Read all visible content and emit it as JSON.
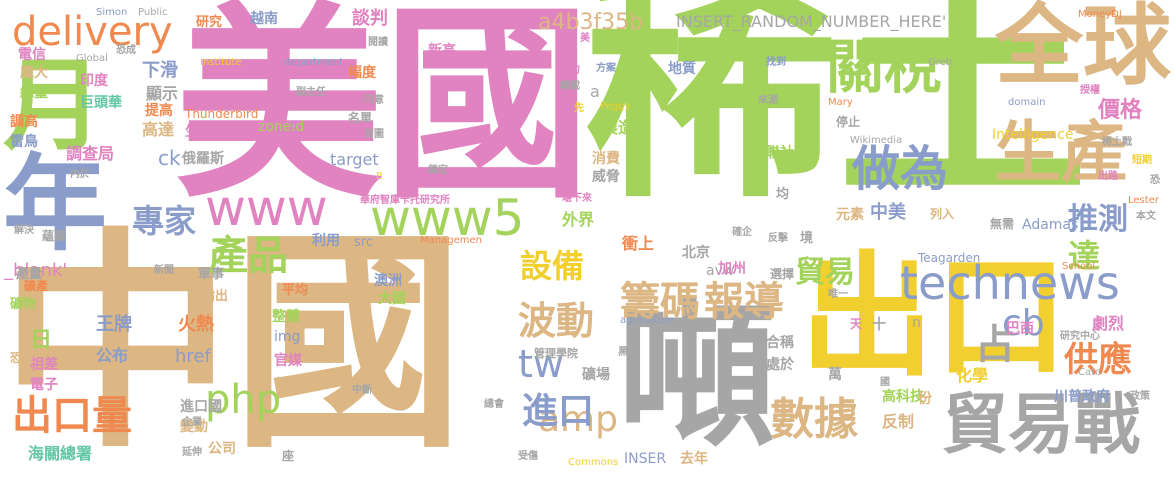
{
  "palette": {
    "green": "#a3d35a",
    "pink": "#e083c0",
    "tan": "#dcb683",
    "blue": "#8a9cc9",
    "gray": "#a6a6a6",
    "yellow": "#f0cf2e",
    "orange": "#f0894f",
    "teal": "#63c7a5"
  },
  "words": [
    {
      "text": "稀土"
    },
    {
      "text": "美國"
    },
    {
      "text": "中國"
    },
    {
      "text": "出口"
    },
    {
      "text": "噸"
    },
    {
      "text": "全球"
    },
    {
      "text": "關稅"
    },
    {
      "text": "生產"
    },
    {
      "text": "貿易戰"
    },
    {
      "text": "technews"
    },
    {
      "text": "www5"
    },
    {
      "text": "www"
    },
    {
      "text": "月"
    },
    {
      "text": "年"
    },
    {
      "text": "delivery"
    },
    {
      "text": "做為"
    },
    {
      "text": "籌碼"
    },
    {
      "text": "報導"
    },
    {
      "text": "數據"
    },
    {
      "text": "波動"
    },
    {
      "text": "產品"
    },
    {
      "text": "專家"
    },
    {
      "text": "設備"
    },
    {
      "text": "貿易"
    },
    {
      "text": "php"
    },
    {
      "text": "amp"
    },
    {
      "text": "tw"
    },
    {
      "text": "出口量"
    },
    {
      "text": "進口"
    },
    {
      "text": "cb"
    },
    {
      "text": "供應"
    },
    {
      "text": "占"
    },
    {
      "text": "達"
    },
    {
      "text": "推測"
    },
    {
      "text": "價格"
    },
    {
      "text": "a4b3f35b"
    },
    {
      "text": "INSERT_RANDOM_NUMBER_HERE'"
    },
    {
      "text": "談判"
    },
    {
      "text": "越南"
    },
    {
      "text": "研究"
    },
    {
      "text": "電信"
    },
    {
      "text": "魔大"
    },
    {
      "text": "總量"
    },
    {
      "text": "調高"
    },
    {
      "text": "雷鳥"
    },
    {
      "text": "印度"
    },
    {
      "text": "巨頭華"
    },
    {
      "text": "提高"
    },
    {
      "text": "高達"
    },
    {
      "text": "顯示"
    },
    {
      "text": "下滑"
    },
    {
      "text": "ck"
    },
    {
      "text": "俄羅斯"
    },
    {
      "text": "調查局"
    },
    {
      "text": "生產國"
    },
    {
      "text": "Thunderbird"
    },
    {
      "text": "zoneid"
    },
    {
      "text": "幅度"
    },
    {
      "text": "名單"
    },
    {
      "text": "target"
    },
    {
      "text": "新高"
    },
    {
      "text": "Intelligence"
    },
    {
      "text": "美聯社"
    },
    {
      "text": "製造"
    },
    {
      "text": "消費"
    },
    {
      "text": "威脅"
    },
    {
      "text": "地質"
    },
    {
      "text": "中美"
    },
    {
      "text": "元素"
    },
    {
      "text": "外界"
    },
    {
      "text": "軍事"
    },
    {
      "text": "指出"
    },
    {
      "text": "利用"
    },
    {
      "text": "src"
    },
    {
      "text": "衝上"
    },
    {
      "text": "北京"
    },
    {
      "text": "avw"
    },
    {
      "text": "加州"
    },
    {
      "text": "選擇"
    },
    {
      "text": "Adamas"
    },
    {
      "text": "無需"
    },
    {
      "text": "列入"
    },
    {
      "text": "Teagarden"
    },
    {
      "text": "_blank'"
    },
    {
      "text": "產量"
    },
    {
      "text": "礦產"
    },
    {
      "text": "礦物"
    },
    {
      "text": "平均"
    },
    {
      "text": "澳洲"
    },
    {
      "text": "大國"
    },
    {
      "text": "王牌"
    },
    {
      "text": "火熱"
    },
    {
      "text": "href"
    },
    {
      "text": "公布"
    },
    {
      "text": "日"
    },
    {
      "text": "整體"
    },
    {
      "text": "img"
    },
    {
      "text": "官媒"
    },
    {
      "text": "比率"
    },
    {
      "text": "相差"
    },
    {
      "text": "電子"
    },
    {
      "text": "恐慌"
    },
    {
      "text": "進口國"
    },
    {
      "text": "變動"
    },
    {
      "text": "公司"
    },
    {
      "text": "海關總署"
    },
    {
      "text": "管理學院"
    },
    {
      "text": "礦場"
    },
    {
      "text": "合稱"
    },
    {
      "text": "處於"
    },
    {
      "text": "萬"
    },
    {
      "text": "高科技"
    },
    {
      "text": "反制"
    },
    {
      "text": "INSER"
    },
    {
      "text": "去年"
    },
    {
      "text": "化學"
    },
    {
      "text": "份"
    },
    {
      "text": "n"
    },
    {
      "text": "川普政府"
    },
    {
      "text": "劇烈"
    },
    {
      "text": "巴西"
    },
    {
      "text": "a"
    },
    {
      "text": "Simon"
    },
    {
      "text": "Public"
    },
    {
      "text": "Global"
    },
    {
      "text": "department"
    },
    {
      "text": "Institute"
    },
    {
      "text": "MoneyDJ"
    },
    {
      "text": "Greb"
    },
    {
      "text": "副主任"
    },
    {
      "text": "方案"
    },
    {
      "text": "找到"
    },
    {
      "text": "細甸"
    },
    {
      "text": "轉載"
    },
    {
      "text": "Peggy"
    },
    {
      "text": "來源"
    },
    {
      "text": "停止"
    },
    {
      "text": "Mary"
    },
    {
      "text": "domain"
    },
    {
      "text": "授權"
    },
    {
      "text": "Wikimedia"
    },
    {
      "text": "稀土戰"
    },
    {
      "text": "短期"
    },
    {
      "text": "出路"
    },
    {
      "text": "Lester"
    },
    {
      "text": "本文"
    },
    {
      "text": "華府智庫卡托研究所"
    },
    {
      "text": "堪下來"
    },
    {
      "text": "Managemen"
    },
    {
      "text": "反擊"
    },
    {
      "text": "確企"
    },
    {
      "text": "均"
    },
    {
      "text": "境"
    },
    {
      "text": "School"
    },
    {
      "text": "唯一"
    },
    {
      "text": "agriculture"
    },
    {
      "text": "天"
    },
    {
      "text": "十"
    },
    {
      "text": "研究中心"
    },
    {
      "text": "Cato"
    },
    {
      "text": "政策"
    },
    {
      "text": "國"
    },
    {
      "text": "黑"
    },
    {
      "text": "中斷"
    },
    {
      "text": "總會"
    },
    {
      "text": "企業"
    },
    {
      "text": "延伸"
    },
    {
      "text": "座"
    },
    {
      "text": "受傷"
    },
    {
      "text": "Commons"
    },
    {
      "text": "解決"
    },
    {
      "text": "蘊藏"
    },
    {
      "text": "新聞"
    },
    {
      "text": "內於"
    },
    {
      "text": "閱讀"
    },
    {
      "text": "同意"
    },
    {
      "text": "首圖"
    },
    {
      "text": "鎖定"
    },
    {
      "text": "B"
    },
    {
      "text": "先"
    },
    {
      "text": "美"
    },
    {
      "text": "恐"
    },
    {
      "text": "恐成"
    }
  ]
}
